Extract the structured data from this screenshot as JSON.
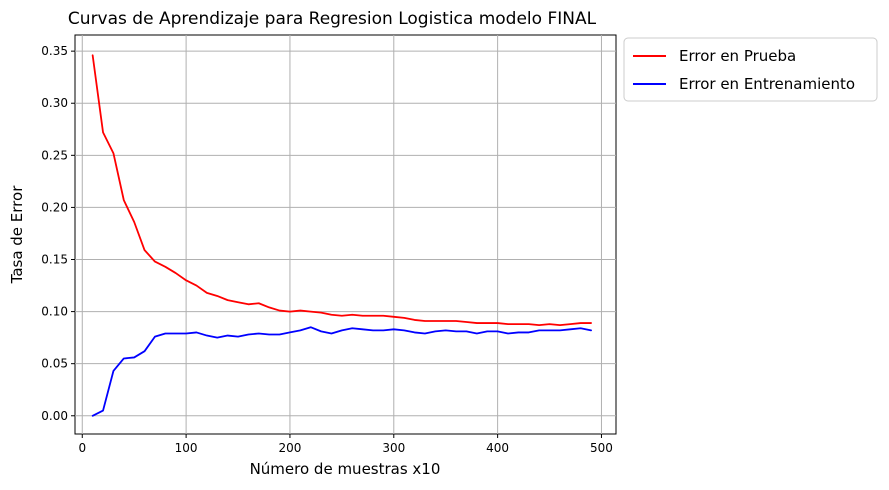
{
  "chart_data": {
    "type": "line",
    "title": "Curvas de Aprendizaje para Regresion Logistica modelo FINAL",
    "xlabel": "Número de muestras x10",
    "ylabel": "Tasa de Error",
    "xlim": [
      -7,
      514
    ],
    "ylim": [
      -0.0175,
      0.3655
    ],
    "xticks": [
      0,
      100,
      200,
      300,
      400,
      500
    ],
    "xtick_labels": [
      "0",
      "100",
      "200",
      "300",
      "400",
      "500"
    ],
    "yticks": [
      0.0,
      0.05,
      0.1,
      0.15,
      0.2,
      0.25,
      0.3,
      0.35
    ],
    "ytick_labels": [
      "0.00",
      "0.05",
      "0.10",
      "0.15",
      "0.20",
      "0.25",
      "0.30",
      "0.35"
    ],
    "grid": true,
    "legend_position": "outside-top-right",
    "x": [
      10,
      20,
      30,
      40,
      50,
      60,
      70,
      80,
      90,
      100,
      110,
      120,
      130,
      140,
      150,
      160,
      170,
      180,
      190,
      200,
      210,
      220,
      230,
      240,
      250,
      260,
      270,
      280,
      290,
      300,
      310,
      320,
      330,
      340,
      350,
      360,
      370,
      380,
      390,
      400,
      410,
      420,
      430,
      440,
      450,
      460,
      470,
      480,
      490
    ],
    "series": [
      {
        "name": "Error en Prueba",
        "color": "#ff0000",
        "values": [
          0.346,
          0.272,
          0.252,
          0.207,
          0.186,
          0.159,
          0.148,
          0.143,
          0.137,
          0.13,
          0.125,
          0.118,
          0.115,
          0.111,
          0.109,
          0.107,
          0.108,
          0.104,
          0.101,
          0.1,
          0.101,
          0.1,
          0.099,
          0.097,
          0.096,
          0.097,
          0.096,
          0.096,
          0.096,
          0.095,
          0.094,
          0.092,
          0.091,
          0.091,
          0.091,
          0.091,
          0.09,
          0.089,
          0.089,
          0.089,
          0.088,
          0.088,
          0.088,
          0.087,
          0.088,
          0.087,
          0.088,
          0.089,
          0.089
        ]
      },
      {
        "name": "Error en Entrenamiento",
        "color": "#0000ff",
        "values": [
          0.0,
          0.005,
          0.043,
          0.055,
          0.056,
          0.062,
          0.076,
          0.079,
          0.079,
          0.079,
          0.08,
          0.077,
          0.075,
          0.077,
          0.076,
          0.078,
          0.079,
          0.078,
          0.078,
          0.08,
          0.082,
          0.085,
          0.081,
          0.079,
          0.082,
          0.084,
          0.083,
          0.082,
          0.082,
          0.083,
          0.082,
          0.08,
          0.079,
          0.081,
          0.082,
          0.081,
          0.081,
          0.079,
          0.081,
          0.081,
          0.079,
          0.08,
          0.08,
          0.082,
          0.082,
          0.082,
          0.083,
          0.084,
          0.082
        ]
      }
    ]
  }
}
